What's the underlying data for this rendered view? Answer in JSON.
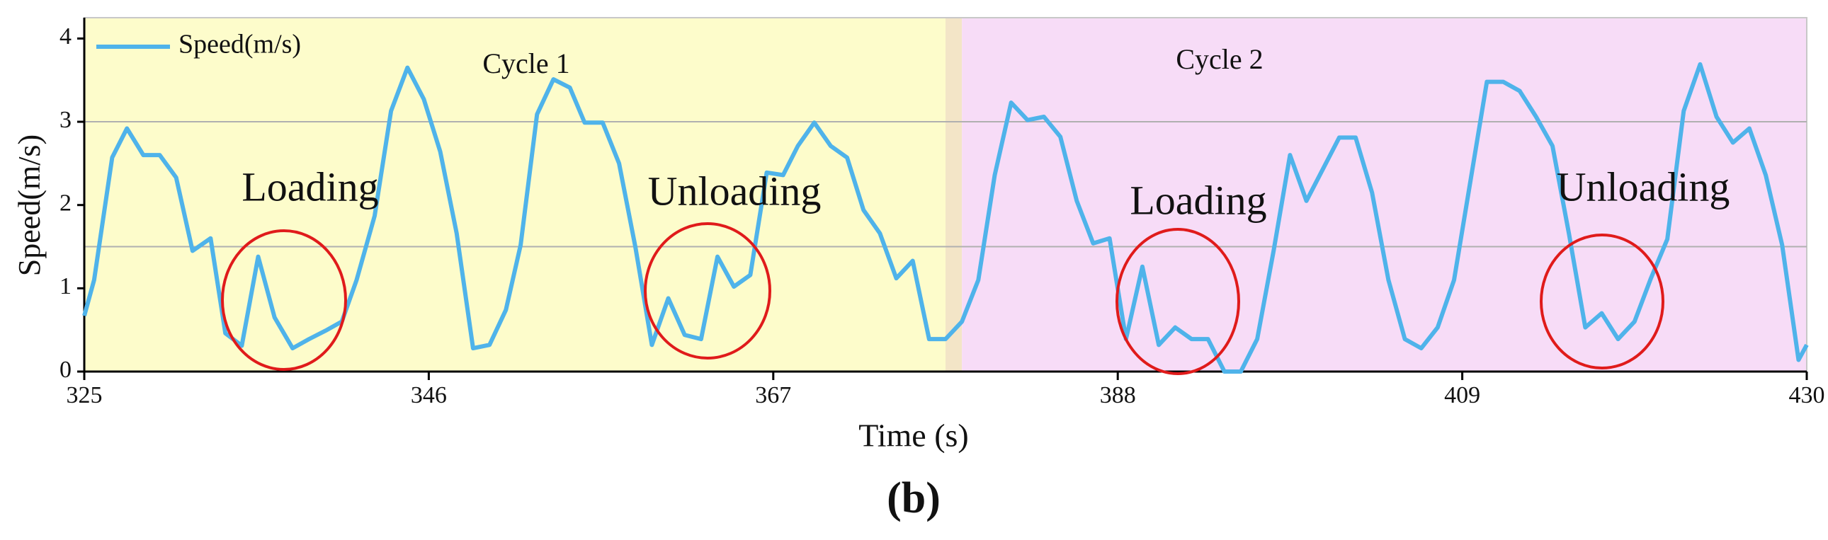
{
  "chart_data": {
    "type": "line",
    "xlabel": "Time (s)",
    "ylabel": "Speed(m/s)",
    "caption": "(b)",
    "xlim": [
      325,
      430
    ],
    "xticks": [
      325,
      346,
      367,
      388,
      409,
      430
    ],
    "ylim": [
      0,
      4.25
    ],
    "yticks": [
      0,
      1,
      2,
      3,
      4
    ],
    "hlines": [
      1.5,
      3
    ],
    "legend": "upper left",
    "regions": [
      {
        "x": [
          325,
          377.5
        ],
        "color": "#fdfccb",
        "label": "Cycle 1"
      },
      {
        "x": [
          377.5,
          378.5
        ],
        "color": "#f3e5c7"
      },
      {
        "x": [
          378.5,
          430
        ],
        "color": "#f7dcf7",
        "label": "Cycle 2"
      }
    ],
    "annotations": [
      "Loading",
      "Unloading",
      "Loading",
      "Unloading"
    ],
    "x": [
      325,
      325.6,
      326.7,
      327.6,
      328.6,
      329.6,
      330.6,
      331.6,
      332.7,
      333.6,
      334.6,
      335.6,
      336.6,
      337.7,
      338.7,
      339.7,
      340.7,
      341.6,
      342.7,
      343.7,
      344.7,
      345.7,
      346.7,
      347.7,
      348.7,
      349.7,
      350.7,
      351.6,
      352.6,
      353.6,
      354.6,
      355.5,
      356.6,
      357.6,
      358.6,
      359.6,
      360.6,
      361.6,
      362.6,
      363.6,
      364.6,
      365.6,
      366.6,
      367.6,
      368.5,
      369.5,
      370.5,
      371.5,
      372.5,
      373.5,
      374.5,
      375.5,
      376.5,
      377.5,
      378.5,
      379.5,
      380.5,
      381.5,
      382.5,
      383.5,
      384.5,
      385.5,
      386.5,
      387.5,
      388.5,
      389.5,
      390.5,
      391.5,
      392.5,
      393.5,
      394.5,
      395.5,
      396.5,
      397.5,
      398.5,
      399.5,
      400.5,
      401.5,
      402.5,
      403.5,
      404.5,
      405.5,
      406.5,
      407.5,
      408.5,
      409.5,
      410.5,
      411.5,
      412.5,
      413.5,
      414.5,
      415.5,
      416.5,
      417.5,
      418.5,
      419.5,
      420.5,
      421.5,
      422.5,
      423.5,
      424.5,
      425.5,
      426.5,
      427.5,
      428.5,
      429.5,
      430
    ],
    "series": [
      {
        "name": "Speed(m/s)",
        "color": "#4fb3ea",
        "values": [
          0.67,
          1.1,
          2.57,
          2.92,
          2.6,
          2.6,
          2.33,
          1.45,
          1.6,
          0.46,
          0.31,
          1.38,
          0.65,
          0.28,
          0.39,
          0.49,
          0.6,
          1.1,
          1.87,
          3.13,
          3.65,
          3.27,
          2.64,
          1.66,
          0.28,
          0.32,
          0.74,
          1.52,
          3.09,
          3.51,
          3.41,
          2.99,
          2.99,
          2.5,
          1.49,
          0.32,
          0.88,
          0.44,
          0.39,
          1.38,
          1.02,
          1.16,
          2.39,
          2.36,
          2.71,
          2.99,
          2.71,
          2.57,
          1.94,
          1.66,
          1.12,
          1.33,
          0.39,
          0.39,
          0.6,
          1.1,
          2.36,
          3.23,
          3.02,
          3.06,
          2.82,
          2.05,
          1.54,
          1.6,
          0.39,
          1.26,
          0.32,
          0.53,
          0.39,
          0.39,
          0,
          0,
          0.39,
          1.45,
          2.6,
          2.05,
          2.43,
          2.81,
          2.81,
          2.15,
          1.1,
          0.39,
          0.28,
          0.53,
          1.1,
          2.29,
          3.48,
          3.48,
          3.37,
          3.06,
          2.71,
          1.66,
          0.53,
          0.7,
          0.39,
          0.6,
          1.12,
          1.59,
          3.13,
          3.69,
          3.06,
          2.75,
          2.92,
          2.36,
          1.52,
          0.14,
          0.32
        ]
      }
    ]
  }
}
